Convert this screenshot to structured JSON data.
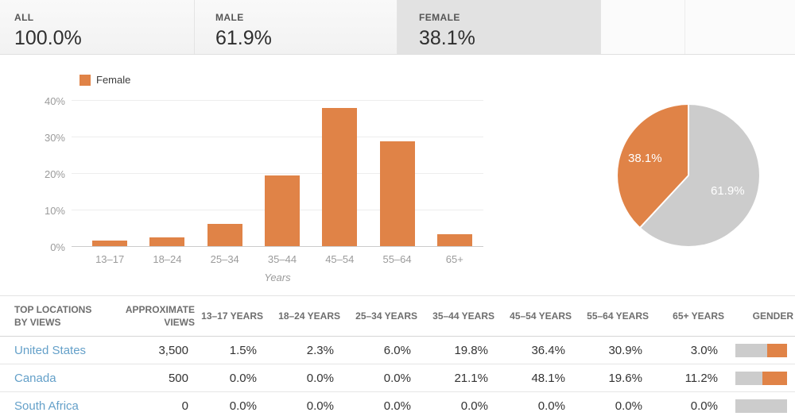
{
  "tabs": {
    "items": [
      {
        "label": "ALL",
        "value": "100.0%",
        "selected": false
      },
      {
        "label": "MALE",
        "value": "61.9%",
        "selected": false
      },
      {
        "label": "FEMALE",
        "value": "38.1%",
        "selected": true
      }
    ]
  },
  "colors": {
    "female_accent": "#e08347",
    "male_gray": "#cccccc",
    "link_blue": "#64a0c9",
    "selected_tab_bg": "#e2e2e2"
  },
  "chart_data": [
    {
      "type": "bar",
      "legend": [
        "Female"
      ],
      "categories": [
        "13–17",
        "18–24",
        "25–34",
        "35–44",
        "45–54",
        "55–64",
        "65+"
      ],
      "values": [
        1.5,
        2.3,
        6.2,
        19.4,
        38.0,
        28.8,
        3.2
      ],
      "xlabel": "Years",
      "ylabel": "",
      "ylim": [
        0,
        40
      ],
      "yticks": [
        "0%",
        "10%",
        "20%",
        "30%",
        "40%"
      ],
      "grid": true,
      "bar_color": "#e08347",
      "legend_position": "top-left"
    },
    {
      "type": "pie",
      "slices": [
        {
          "name": "male",
          "label": "61.9%",
          "value": 61.9,
          "color": "#cccccc"
        },
        {
          "name": "female",
          "label": "38.1%",
          "value": 38.1,
          "color": "#e08347"
        }
      ],
      "start_angle_deg": 0,
      "direction": "clockwise",
      "labels_inside": true
    }
  ],
  "table": {
    "headers": [
      "TOP LOCATIONS BY VIEWS",
      "APPROXIMATE VIEWS",
      "13–17 YEARS",
      "18–24 YEARS",
      "25–34 YEARS",
      "35–44 YEARS",
      "45–54 YEARS",
      "55–64 YEARS",
      "65+ YEARS",
      "GENDER"
    ],
    "rows": [
      {
        "location": "United States",
        "views": "3,500",
        "ages": [
          "1.5%",
          "2.3%",
          "6.0%",
          "19.8%",
          "36.4%",
          "30.9%",
          "3.0%"
        ],
        "gender_female_pct": 38.5
      },
      {
        "location": "Canada",
        "views": "500",
        "ages": [
          "0.0%",
          "0.0%",
          "0.0%",
          "21.1%",
          "48.1%",
          "19.6%",
          "11.2%"
        ],
        "gender_female_pct": 47
      },
      {
        "location": "South Africa",
        "views": "0",
        "ages": [
          "0.0%",
          "0.0%",
          "0.0%",
          "0.0%",
          "0.0%",
          "0.0%",
          "0.0%"
        ],
        "gender_female_pct": 0
      }
    ]
  }
}
